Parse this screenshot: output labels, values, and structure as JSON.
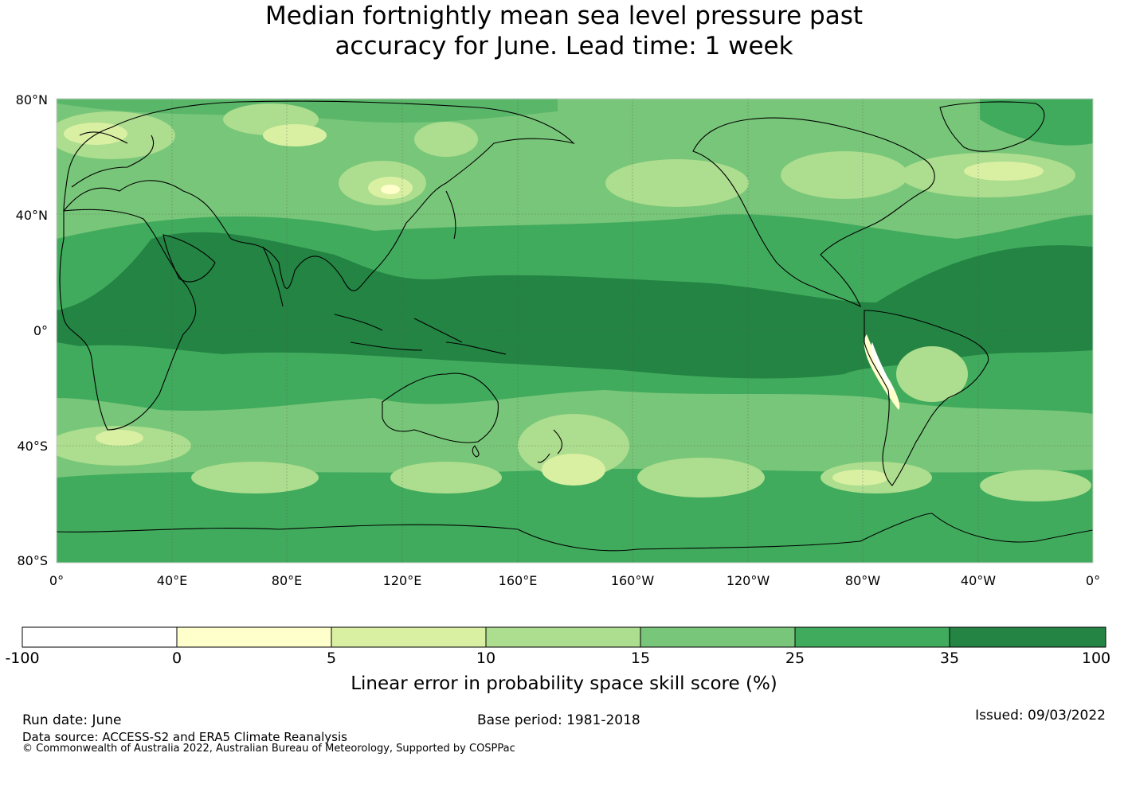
{
  "title_line1": "Median fortnightly mean sea level pressure past",
  "title_line2": "accuracy for June. Lead time: 1 week",
  "lat_labels": [
    "80°N",
    "40°N",
    "0°",
    "40°S",
    "80°S"
  ],
  "lon_labels": [
    "0°",
    "40°E",
    "80°E",
    "120°E",
    "160°E",
    "160°W",
    "120°W",
    "80°W",
    "40°W",
    "0°"
  ],
  "colorbar": {
    "ticks": [
      "-100",
      "0",
      "5",
      "10",
      "15",
      "25",
      "35",
      "100"
    ],
    "colors": [
      "#ffffff",
      "#ffffcc",
      "#d9f0a3",
      "#addd8e",
      "#78c679",
      "#41ab5d",
      "#238443"
    ],
    "title": "Linear error in probability space skill score (%)"
  },
  "footer": {
    "run_date": "Run date: June",
    "base_period": "Base period: 1981-2018",
    "issued": "Issued: 09/03/2022",
    "data_source": "Data source: ACCESS-S2 and ERA5 Climate Reanalysis",
    "copyright": "© Commonwealth of Australia 2022, Australian Bureau of Meteorology, Supported by COSPPac"
  }
}
